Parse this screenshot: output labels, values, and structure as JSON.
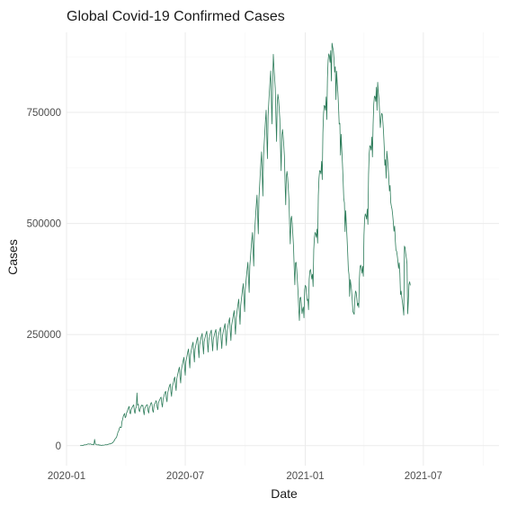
{
  "chart_data": {
    "type": "line",
    "title": "Global Covid-19 Confirmed Cases",
    "xlabel": "Date",
    "ylabel": "Cases",
    "x_range": [
      "2020-01-01",
      "2021-10-25"
    ],
    "ylim": [
      -45000,
      930000
    ],
    "grid": true,
    "legend": "none",
    "line_color": "#2E7D5B",
    "x_ticks": [
      {
        "date": "2020-01-01",
        "label": "2020-01"
      },
      {
        "date": "2020-07-01",
        "label": "2020-07"
      },
      {
        "date": "2021-01-01",
        "label": "2021-01"
      },
      {
        "date": "2021-07-01",
        "label": "2021-07"
      }
    ],
    "y_ticks": [
      {
        "value": 0,
        "label": "0"
      },
      {
        "value": 250000,
        "label": "250000"
      },
      {
        "value": 500000,
        "label": "500000"
      },
      {
        "value": 750000,
        "label": "750000"
      }
    ],
    "series": [
      {
        "x_start": "2020-01-22",
        "x_step_days": 1,
        "values": [
          555,
          98,
          288,
          493,
          684,
          810,
          2010,
          1691,
          1988,
          2038,
          2771,
          3240,
          3931,
          3739,
          3236,
          3889,
          3721,
          3147,
          2610,
          2551,
          2053,
          2060,
          14129,
          5086,
          2658,
          2012,
          1853,
          1864,
          2151,
          1005,
          1790,
          1054,
          561,
          681,
          1156,
          1034,
          1230,
          1505,
          1865,
          2347,
          1990,
          1938,
          2552,
          3085,
          3751,
          3963,
          3878,
          5153,
          4800,
          6130,
          6838,
          9213,
          10719,
          14048,
          15938,
          17542,
          20458,
          25683,
          31247,
          33112,
          38904,
          42174,
          40798,
          41006,
          54167,
          59006,
          66174,
          69624,
          72398,
          62842,
          65437,
          73654,
          76298,
          81754,
          85341,
          88326,
          74201,
          71548,
          80643,
          84221,
          87523,
          89731,
          91856,
          77154,
          72654,
          84102,
          86546,
          118567,
          91234,
          93212,
          80145,
          76328,
          83321,
          87654,
          91243,
          89567,
          90875,
          77654,
          69543,
          84321,
          86789,
          89654,
          92102,
          91543,
          78432,
          73321,
          85432,
          88765,
          94321,
          97123,
          92876,
          79543,
          75123,
          88654,
          93678,
          95432,
          101234,
          98765,
          86543,
          80876,
          96123,
          100876,
          103765,
          107432,
          109234,
          94321,
          86765,
          104321,
          109876,
          115432,
          119876,
          122345,
          106543,
          98765,
          117654,
          124321,
          130876,
          135432,
          138765,
          121234,
          110876,
          131234,
          137654,
          142987,
          150543,
          154321,
          135876,
          123876,
          150123,
          157654,
          164321,
          171234,
          176543,
          154321,
          140876,
          169876,
          178123,
          185432,
          192543,
          198654,
          173876,
          158432,
          188765,
          196543,
          204321,
          211876,
          217543,
          192123,
          174876,
          204321,
          212876,
          220543,
          227654,
          232876,
          207654,
          188123,
          216543,
          224321,
          231876,
          238765,
          243987,
          218654,
          197876,
          226543,
          233765,
          241234,
          247876,
          252654,
          226876,
          206123,
          233876,
          240876,
          247123,
          252987,
          257654,
          231654,
          210543,
          236987,
          243543,
          249876,
          255654,
          260123,
          234321,
          213234,
          238876,
          245321,
          251543,
          256987,
          261543,
          235876,
          214876,
          241543,
          248765,
          254987,
          260876,
          266234,
          239654,
          218654,
          246543,
          254543,
          261987,
          268543,
          274543,
          246987,
          225432,
          255987,
          264876,
          273234,
          280876,
          287654,
          258987,
          236543,
          268876,
          278432,
          287654,
          296234,
          303876,
          273654,
          250543,
          285876,
          297543,
          309234,
          319876,
          329543,
          297543,
          272876,
          314876,
          328765,
          341543,
          353876,
          364543,
          329543,
          301543,
          350876,
          367543,
          383654,
          398765,
          412543,
          375543,
          344654,
          403876,
          423987,
          443876,
          462543,
          479543,
          437654,
          403987,
          472543,
          496765,
          520654,
          543234,
          563765,
          515876,
          476543,
          556876,
          584765,
          611876,
          637654,
          661234,
          606876,
          561654,
          650876,
          679543,
          706543,
          731765,
          754876,
          695543,
          645876,
          741876,
          770654,
          797234,
          821543,
          843234,
          777876,
          723876,
          812543,
          880543,
          850543,
          827543,
          803654,
          739654,
          684543,
          768654,
          790654,
          780234,
          758876,
          734876,
          671543,
          618654,
          695876,
          711543,
          698654,
          676987,
          651876,
          592543,
          541876,
          606543,
          617234,
          602987,
          578654,
          552543,
          497876,
          453876,
          509876,
          516234,
          499654,
          473987,
          447876,
          401543,
          361987,
          410987,
          412543,
          394654,
          368876,
          343543,
          307543,
          281543,
          332543,
          333876,
          318987,
          296876,
          306765,
          311876,
          287654,
          350876,
          360654,
          357543,
          341987,
          326543,
          329654,
          305876,
          374654,
          392876,
          396543,
          386876,
          374987,
          385654,
          357876,
          440876,
          468543,
          479876,
          476234,
          468543,
          487543,
          455654,
          562654,
          601234,
          618876,
          617654,
          611654,
          639765,
          598543,
          703987,
          746543,
          765654,
          763654,
          754765,
          784876,
          733765,
          827654,
          866987,
          881543,
          876987,
          862543,
          888876,
          820543,
          905654,
          896987,
          889654,
          870876,
          840543,
          852654,
          778654,
          842765,
          816543,
          793987,
          761987,
          723654,
          725654,
          653654,
          700654,
          664876,
          634543,
          597987,
          555543,
          546543,
          481654,
          528654,
          496876,
          467987,
          434543,
          397654,
          384987,
          335765,
          373987,
          361987,
          348234,
          327543,
          301543,
          298543,
          295543,
          330654,
          347987,
          344876,
          331543,
          314987,
          320543,
          310876,
          376543,
          402876,
          406234,
          399876,
          387876,
          403765,
          380987,
          473876,
          511543,
          521543,
          517543,
          509876,
          532543,
          497876,
          609654,
          657234,
          674987,
          672654,
          664987,
          694543,
          649543,
          722654,
          768765,
          786543,
          784654,
          774543,
          806543,
          754654,
          817654,
          794543,
          778876,
          748543,
          715543,
          734543,
          747654,
          745654,
          727654,
          704876,
          672876,
          630876,
          643543,
          601876,
          662654,
          647543,
          627876,
          602543,
          572987,
          585654,
          547876,
          538654,
          531987,
          518654,
          501876,
          482543,
          493987,
          462543,
          439876,
          437543,
          427876,
          414543,
          398876,
          411654,
          387543,
          339876,
          347654,
          333543,
          322765,
          309654,
          293543,
          448987,
          445876,
          431654,
          421543,
          408987,
          296543,
          324654,
          362876,
          368765,
          360654
        ]
      }
    ]
  }
}
